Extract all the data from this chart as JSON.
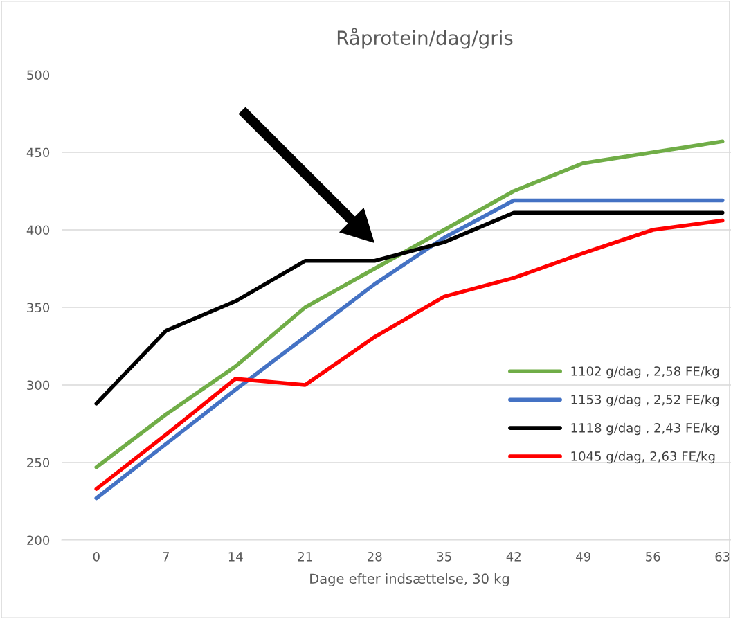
{
  "chart_data": {
    "type": "line",
    "title": "Råprotein/dag/gris",
    "xlabel": "Dage efter indsættelse, 30 kg",
    "categories": [
      "0",
      "7",
      "14",
      "21",
      "28",
      "35",
      "42",
      "49",
      "56",
      "63"
    ],
    "series": [
      {
        "name": "1102 g/dag , 2,58 FE/kg",
        "color": "#70ad47",
        "values": [
          247,
          281,
          312,
          350,
          375,
          400,
          425,
          443,
          450,
          457
        ]
      },
      {
        "name": "1153 g/dag , 2,52 FE/kg",
        "color": "#4472c4",
        "values": [
          227,
          262,
          297,
          331,
          365,
          395,
          419,
          419,
          419,
          419
        ]
      },
      {
        "name": "1118 g/dag , 2,43 FE/kg",
        "color": "#000000",
        "values": [
          288,
          335,
          354,
          380,
          380,
          392,
          411,
          411,
          411,
          411
        ]
      },
      {
        "name": "1045 g/dag, 2,63 FE/kg",
        "color": "#ff0000",
        "values": [
          233,
          268,
          304,
          300,
          331,
          357,
          369,
          385,
          400,
          406
        ]
      }
    ],
    "ylim": [
      200,
      500
    ],
    "yticks": [
      200,
      250,
      300,
      350,
      400,
      450,
      500
    ],
    "grid": "y",
    "legend": "right",
    "marker": "none",
    "line_style": "solid"
  }
}
